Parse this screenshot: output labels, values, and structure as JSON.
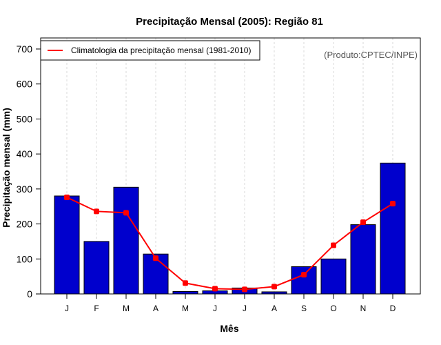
{
  "chart_data": {
    "type": "bar",
    "title": "Precipitação Mensal (2005): Região 81",
    "xlabel": "Mês",
    "ylabel": "Precipitação mensal (mm)",
    "ylim": [
      0,
      700
    ],
    "yticks": [
      0,
      100,
      200,
      300,
      400,
      500,
      600,
      700
    ],
    "categories": [
      "J",
      "F",
      "M",
      "A",
      "M",
      "J",
      "J",
      "A",
      "S",
      "O",
      "N",
      "D"
    ],
    "grid": "vertical dashed at categories",
    "credit": "(Produto:CPTEC/INPE)",
    "legend": {
      "placement": "top-left",
      "entries": [
        "Climatologia da precipitação mensal (1981-2010)"
      ]
    },
    "series": [
      {
        "name": "Precipitação mensal 2005",
        "type": "bar",
        "color": "#0000CD",
        "values": [
          280,
          150,
          305,
          114,
          7,
          9,
          17,
          6,
          78,
          100,
          198,
          374
        ]
      },
      {
        "name": "Climatologia da precipitação mensal (1981-2010)",
        "type": "line",
        "color": "#FF0000",
        "values": [
          276,
          236,
          232,
          102,
          31,
          15,
          13,
          21,
          55,
          139,
          205,
          258
        ]
      }
    ]
  }
}
